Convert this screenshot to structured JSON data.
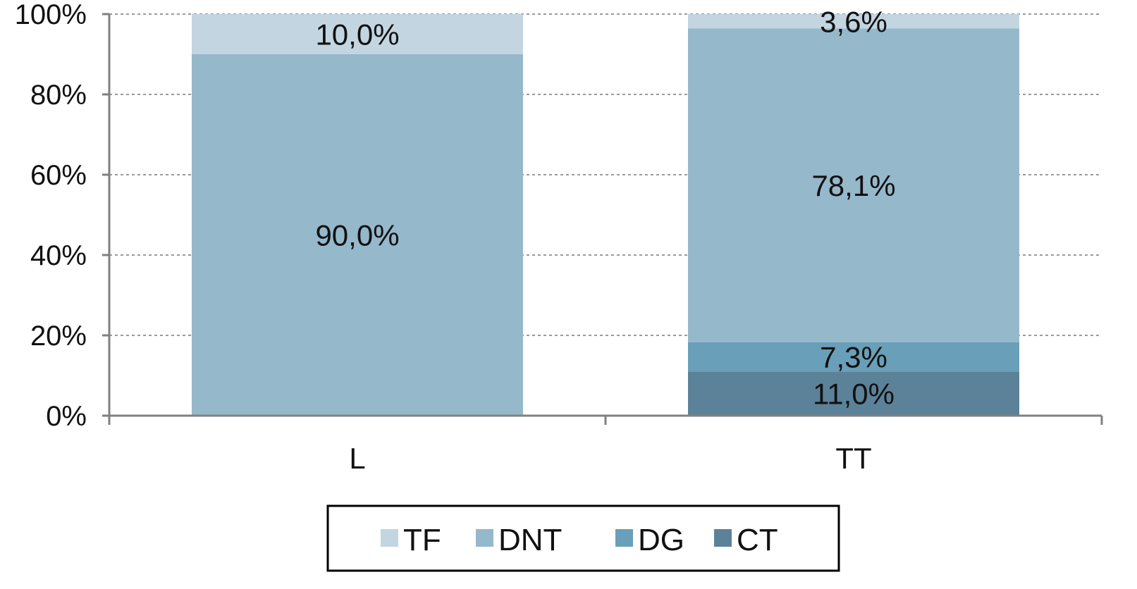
{
  "chart_data": {
    "type": "bar",
    "stacked": true,
    "categories": [
      "L",
      "TT"
    ],
    "series": [
      {
        "name": "CT",
        "values": [
          0,
          11.0
        ],
        "labels": [
          "",
          "11,0%"
        ],
        "color": "#5b8299"
      },
      {
        "name": "DG",
        "values": [
          0,
          7.3
        ],
        "labels": [
          "",
          "7,3%"
        ],
        "color": "#699fb8"
      },
      {
        "name": "DNT",
        "values": [
          90.0,
          78.1
        ],
        "labels": [
          "90,0%",
          "78,1%"
        ],
        "color": "#95b8cb"
      },
      {
        "name": "TF",
        "values": [
          10.0,
          3.6
        ],
        "labels": [
          "10,0%",
          "3,6%"
        ],
        "color": "#c3d5e0"
      }
    ],
    "yticks": [
      "0%",
      "20%",
      "40%",
      "60%",
      "80%",
      "100%"
    ],
    "ylim": [
      0,
      100
    ],
    "grid": true,
    "legend_order": [
      "TF",
      "DNT",
      "DG",
      "CT"
    ],
    "legend_position": "bottom"
  }
}
